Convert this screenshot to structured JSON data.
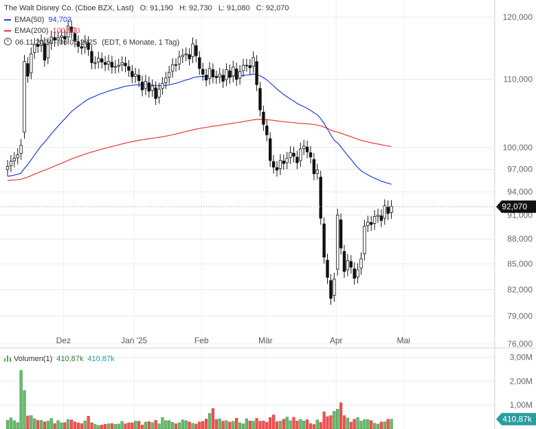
{
  "header": {
    "title": "The Walt Disney Co. (Cboe BZX, Last)",
    "open_label": "O:",
    "open": "91,190",
    "high_label": "H:",
    "high": "92,730",
    "low_label": "L:",
    "low": "91,080",
    "close_label": "C:",
    "close": "92,070"
  },
  "indicators": {
    "ema50": {
      "label": "EMA(50)",
      "value": "94,703",
      "color": "#1f3fd6"
    },
    "ema200": {
      "label": "EMA(200)",
      "value": "100,500",
      "color": "#e53935"
    },
    "range": {
      "dates": "06.11.2024 - 06.05.2025",
      "info": "(EDT, 6 Monate, 1 Tag)",
      "icon": "clock-icon"
    },
    "volume": {
      "label": "Volumen(1)",
      "value": "410,87k",
      "value2": "410,87k",
      "icon": "volume-bars-icon"
    }
  },
  "colors": {
    "up": "#ffffff",
    "down": "#111111",
    "vol_up": "#66bb6a",
    "vol_down": "#ef5350",
    "grid": "#e8e8e8",
    "price_tag": "#111111",
    "volume_tag": "#2a9d9f"
  },
  "chart_data": [
    {
      "type": "candlestick",
      "yscale": "log",
      "ylim": [
        76000,
        122000
      ],
      "yticks": [
        120000,
        110000,
        100000,
        97000,
        94000,
        91000,
        88000,
        85000,
        82000,
        79000,
        76000
      ],
      "ytick_labels": [
        "120,000",
        "110,000",
        "100,000",
        "97,000",
        "94,000",
        "91,000",
        "88,000",
        "85,000",
        "82,000",
        "79,000",
        "76,000"
      ],
      "x_tick_labels": [
        "Dez",
        "Jan '25",
        "Feb",
        "Mär",
        "Apr",
        "Mai"
      ],
      "last_price": 92070,
      "last_price_label": "92,070",
      "closes": [
        97.4,
        98.1,
        98.5,
        99.0,
        100.3,
        112.8,
        110.5,
        114.0,
        115.5,
        115.2,
        116.1,
        113.0,
        115.5,
        116.7,
        116.2,
        116.6,
        116.9,
        116.4,
        118.5,
        117.5,
        116.1,
        115.2,
        114.9,
        116.0,
        114.7,
        112.6,
        112.6,
        113.3,
        112.7,
        112.3,
        112.8,
        111.9,
        112.0,
        112.2,
        112.6,
        112.1,
        111.4,
        110.4,
        110.8,
        109.8,
        108.4,
        109.7,
        108.2,
        109.0,
        107.1,
        108.5,
        109.4,
        110.2,
        111.1,
        112.3,
        112.2,
        113.5,
        113.8,
        114.0,
        113.2,
        115.6,
        113.7,
        111.7,
        110.8,
        109.9,
        111.7,
        110.4,
        110.3,
        110.8,
        109.7,
        111.5,
        110.3,
        111.9,
        110.0,
        111.2,
        112.2,
        112.2,
        111.8,
        113.4,
        109.2,
        105.4,
        103.3,
        101.8,
        98.2,
        97.3,
        96.9,
        98.2,
        97.8,
        98.5,
        99.3,
        98.8,
        97.9,
        99.8,
        100.2,
        99.4,
        98.7,
        96.4,
        96.9,
        90.6,
        85.8,
        83.4,
        81.0,
        83.2,
        91.0,
        86.9,
        84.1,
        85.4,
        84.6,
        83.3,
        84.3,
        85.6,
        89.6,
        90.1,
        89.8,
        90.8,
        91.0,
        90.3,
        92.2,
        91.2,
        92.1
      ],
      "volume_k": [
        370,
        470,
        350,
        270,
        2450,
        1610,
        550,
        560,
        430,
        360,
        360,
        300,
        330,
        440,
        230,
        350,
        260,
        270,
        400,
        380,
        300,
        260,
        230,
        340,
        540,
        260,
        200,
        150,
        170,
        200,
        220,
        230,
        200,
        210,
        320,
        220,
        260,
        260,
        330,
        330,
        170,
        290,
        310,
        270,
        370,
        220,
        480,
        350,
        350,
        280,
        220,
        260,
        380,
        350,
        300,
        240,
        210,
        300,
        320,
        420,
        650,
        860,
        400,
        430,
        330,
        350,
        290,
        320,
        450,
        260,
        220,
        430,
        340,
        330,
        450,
        330,
        340,
        280,
        480,
        590,
        310,
        330,
        410,
        500,
        350,
        490,
        340,
        400,
        340,
        390,
        230,
        190,
        380,
        280,
        720,
        520,
        560,
        740,
        830,
        1100,
        560,
        460,
        290,
        410,
        480,
        330,
        390,
        400,
        350,
        240,
        210,
        300,
        300,
        410,
        411
      ],
      "volume_ylim": [
        0,
        3000
      ],
      "volume_ticks": [
        "3,00M",
        "2,00M",
        "1,00M"
      ],
      "volume_last_label": "410,87k",
      "ema50_last": 94.703,
      "ema200_last": 100.5
    }
  ]
}
